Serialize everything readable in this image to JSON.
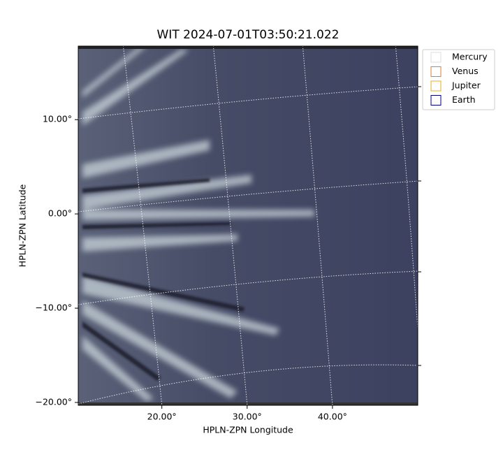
{
  "chart_data": {
    "type": "image",
    "title": "WIT 2024-07-01T03:50:21.022",
    "x_label": "HPLN-ZPN Longitude",
    "y_label": "HPLN-ZPN Latitude",
    "xlim": [
      10.2,
      50
    ],
    "ylim": [
      -20.3,
      17.8
    ],
    "xticks": [
      {
        "value": 20,
        "label": "20.00°"
      },
      {
        "value": 30,
        "label": "30.00°"
      },
      {
        "value": 40,
        "label": "40.00°"
      }
    ],
    "yticks": [
      {
        "value": -20,
        "label": "−20.00°"
      },
      {
        "value": -10,
        "label": "−10.00°"
      },
      {
        "value": 0,
        "label": "0.00°"
      },
      {
        "value": 10,
        "label": "10.00°"
      }
    ],
    "legend": "upper right",
    "series": [
      {
        "name": "Mercury",
        "color": "#dddddd"
      },
      {
        "name": "Venus",
        "color": "#e07b39"
      },
      {
        "name": "Jupiter",
        "color": "#e0b020"
      },
      {
        "name": "Earth",
        "color": "#000080"
      }
    ]
  }
}
